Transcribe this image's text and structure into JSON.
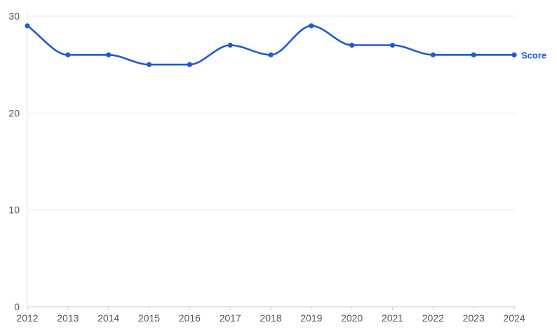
{
  "chart_data": {
    "type": "line",
    "title": "",
    "xlabel": "",
    "ylabel": "",
    "x": [
      2012,
      2013,
      2014,
      2015,
      2016,
      2017,
      2018,
      2019,
      2020,
      2021,
      2022,
      2023,
      2024
    ],
    "x_tick_labels": [
      "2012",
      "2013",
      "2014",
      "2015",
      "2016",
      "2017",
      "2018",
      "2019",
      "2020",
      "2021",
      "2022",
      "2023",
      "2024"
    ],
    "ylim": [
      0,
      30
    ],
    "y_ticks": [
      0,
      10,
      20,
      30
    ],
    "y_tick_labels": [
      "0",
      "10",
      "20",
      "30"
    ],
    "grid": true,
    "curve": "smooth",
    "legend": "inline-right",
    "series": [
      {
        "name": "Score",
        "color": "#1f5bd0",
        "values": [
          29,
          26,
          26,
          25,
          25,
          27,
          26,
          29,
          27,
          27,
          26,
          26,
          26
        ]
      }
    ]
  }
}
